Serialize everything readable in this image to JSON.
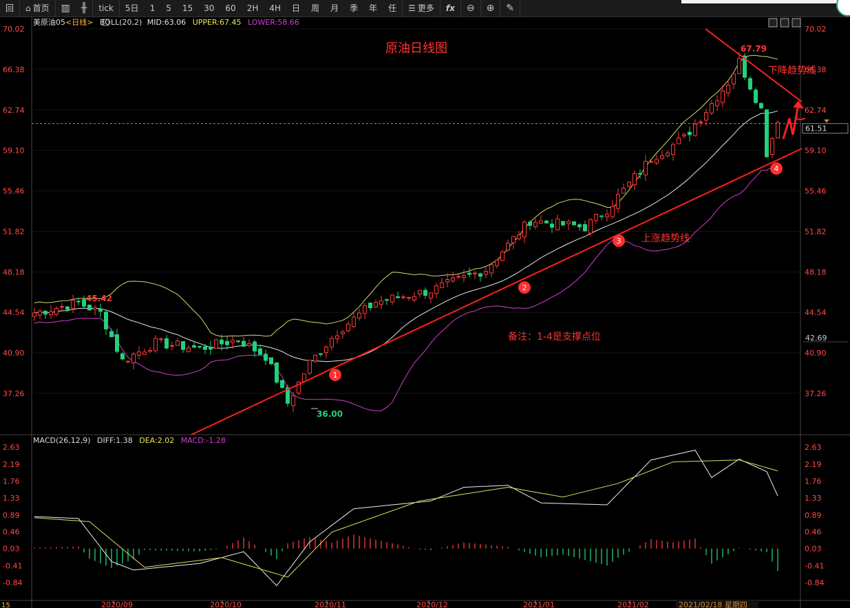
{
  "toolbar": {
    "back": "回",
    "home": "首页",
    "tick": "tick",
    "periods": [
      "5日",
      "1",
      "5",
      "15",
      "30",
      "60",
      "2H",
      "4H",
      "日",
      "周",
      "月",
      "季",
      "年",
      "任"
    ],
    "more": "更多",
    "fx": "fx"
  },
  "main_legend": {
    "symbol": "美原油05",
    "period": "<日线>",
    "indicator": "BOLL(20,2)",
    "mid": "MID:63.06",
    "upper": "UPPER:67.45",
    "lower": "LOWER:58.66"
  },
  "macd_legend": {
    "name": "MACD(26,12,9)",
    "diff": "DIFF:1.38",
    "dea": "DEA:2.02",
    "macd": "MACD:-1.28"
  },
  "annotations": {
    "title": "原油日线图",
    "down_trend": "下降趋势线",
    "up_trend": "上涨趋势线",
    "note": "备注：1-4是支撑点位",
    "high": "45.42",
    "low": "36.00",
    "peak": "67.79",
    "points": [
      "1",
      "2",
      "3",
      "4"
    ]
  },
  "price_axis": {
    "ticks": [
      "70.02",
      "66.38",
      "62.74",
      "59.10",
      "55.46",
      "51.82",
      "48.18",
      "44.54",
      "40.90",
      "37.26"
    ],
    "current": "61.51",
    "right_extra": "42.69"
  },
  "macd_axis": {
    "ticks": [
      "2.63",
      "2.19",
      "1.76",
      "1.33",
      "0.89",
      "0.46",
      "0.03",
      "-0.41",
      "-0.84"
    ]
  },
  "date_axis": {
    "labels": [
      "2020/09",
      "2020/10",
      "2020/11",
      "2020/12",
      "2021/01",
      "2021/02"
    ],
    "cursor": "2021/02/18 星期四",
    "corner": "15"
  },
  "colors": {
    "up": "#ff3b3b",
    "down": "#22d17a",
    "upper": "#d8d86a",
    "mid": "#e6e6e6",
    "lower": "#d040d0",
    "trend": "#ff2020",
    "axis_text": "#ff4a4a"
  },
  "chart_data": {
    "type": "candlestick",
    "ylim": [
      35.5,
      70.5
    ],
    "current_price": 61.51,
    "boll": {
      "mid": 63.06,
      "upper": 67.45,
      "lower": 58.66
    },
    "anchors": [
      {
        "d": 0,
        "p": 44.5
      },
      {
        "d": 8,
        "p": 45.4
      },
      {
        "d": 12,
        "p": 44.5
      },
      {
        "d": 16,
        "p": 40.2
      },
      {
        "d": 22,
        "p": 41.8
      },
      {
        "d": 30,
        "p": 41.3
      },
      {
        "d": 37,
        "p": 42.1
      },
      {
        "d": 42,
        "p": 40.6
      },
      {
        "d": 46,
        "p": 36.4
      },
      {
        "d": 50,
        "p": 40.0
      },
      {
        "d": 55,
        "p": 42.8
      },
      {
        "d": 62,
        "p": 45.5
      },
      {
        "d": 72,
        "p": 46.5
      },
      {
        "d": 82,
        "p": 48.4
      },
      {
        "d": 90,
        "p": 52.8
      },
      {
        "d": 100,
        "p": 52.2
      },
      {
        "d": 104,
        "p": 53.8
      },
      {
        "d": 112,
        "p": 58.4
      },
      {
        "d": 118,
        "p": 60.2
      },
      {
        "d": 126,
        "p": 65.2
      },
      {
        "d": 128,
        "p": 67.1
      },
      {
        "d": 130,
        "p": 64.9
      },
      {
        "d": 132,
        "p": 62.8
      },
      {
        "d": 133,
        "p": 58.9
      },
      {
        "d": 135,
        "p": 61.6
      }
    ],
    "macd_range": [
      -1.2,
      2.63
    ],
    "diff_anchors": [
      {
        "d": 0,
        "v": 0.85
      },
      {
        "d": 8,
        "v": 0.8
      },
      {
        "d": 14,
        "v": -0.3
      },
      {
        "d": 18,
        "v": -0.52
      },
      {
        "d": 30,
        "v": -0.35
      },
      {
        "d": 38,
        "v": -0.05
      },
      {
        "d": 44,
        "v": -0.92
      },
      {
        "d": 50,
        "v": 0.2
      },
      {
        "d": 58,
        "v": 1.05
      },
      {
        "d": 72,
        "v": 1.25
      },
      {
        "d": 78,
        "v": 1.6
      },
      {
        "d": 86,
        "v": 1.65
      },
      {
        "d": 92,
        "v": 1.2
      },
      {
        "d": 104,
        "v": 1.15
      },
      {
        "d": 112,
        "v": 2.3
      },
      {
        "d": 120,
        "v": 2.55
      },
      {
        "d": 123,
        "v": 1.85
      },
      {
        "d": 128,
        "v": 2.32
      },
      {
        "d": 133,
        "v": 2.0
      },
      {
        "d": 135,
        "v": 1.38
      }
    ],
    "dea_anchors": [
      {
        "d": 0,
        "v": 0.82
      },
      {
        "d": 10,
        "v": 0.72
      },
      {
        "d": 20,
        "v": -0.45
      },
      {
        "d": 34,
        "v": -0.2
      },
      {
        "d": 46,
        "v": -0.7
      },
      {
        "d": 54,
        "v": 0.45
      },
      {
        "d": 70,
        "v": 1.25
      },
      {
        "d": 86,
        "v": 1.6
      },
      {
        "d": 96,
        "v": 1.35
      },
      {
        "d": 106,
        "v": 1.7
      },
      {
        "d": 116,
        "v": 2.25
      },
      {
        "d": 128,
        "v": 2.3
      },
      {
        "d": 135,
        "v": 2.02
      }
    ]
  }
}
